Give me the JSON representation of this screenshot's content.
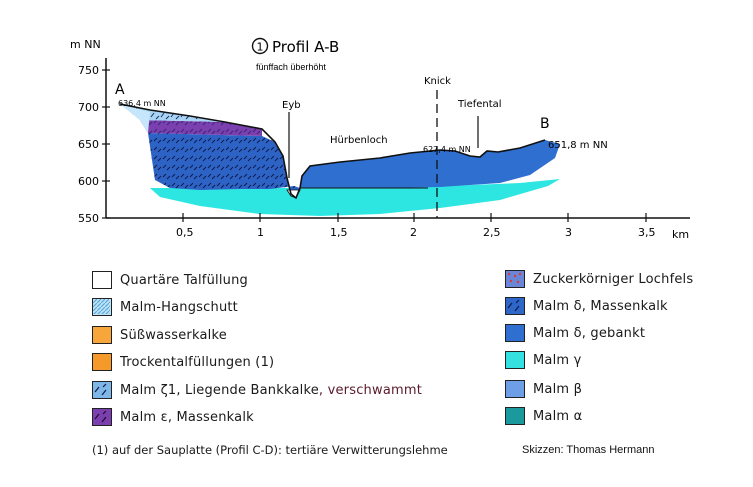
{
  "title": "Profil A-B",
  "title_number": "1",
  "subtitle": "fünffach überhöht",
  "y_axis_unit": "m NN",
  "x_axis_unit": "km",
  "y_ticks": [
    "750",
    "700",
    "650",
    "600",
    "550"
  ],
  "x_ticks": [
    "0,5",
    "1",
    "1,5",
    "2",
    "2,5",
    "3",
    "3,5"
  ],
  "points": {
    "a_label": "A",
    "a_elevation": "636,4 m NN",
    "b_label": "B",
    "b_elevation": "651,8 m NN",
    "knick_elevation": "627,4 m NN"
  },
  "place_names": {
    "eyb": "Eyb",
    "knick": "Knick",
    "tiefental": "Tiefental",
    "huerbenloch": "Hürbenloch"
  },
  "legend_left": [
    {
      "label": "Quartäre Talfüllung",
      "color": "#ffffff",
      "pattern": "none"
    },
    {
      "label": "Malm-Hangschutt",
      "color": "#bfe3f7",
      "pattern": "hatch"
    },
    {
      "label": "Süßwasserkalke",
      "color": "#f6a63a",
      "pattern": "none"
    },
    {
      "label": "Trockentalfüllungen (1)",
      "color": "#f39a2a",
      "pattern": "none"
    },
    {
      "label": "Malm ζ1, Liegende Bankkalke",
      "extra": ", verschwammt",
      "color": "#7fb7e8",
      "pattern": "ticks"
    },
    {
      "label": "Malm ε, Massenkalk",
      "color": "#7b3fb0",
      "pattern": "ticks"
    }
  ],
  "legend_right": [
    {
      "label": "Zuckerkörniger Lochfels",
      "color": "#6a86d6",
      "pattern": "dots"
    },
    {
      "label": "Malm δ, Massenkalk",
      "color": "#2e66c9",
      "pattern": "ticks"
    },
    {
      "label": "Malm δ, gebankt",
      "color": "#2f6fd0",
      "pattern": "none"
    },
    {
      "label": "Malm γ",
      "color": "#35e0e0",
      "pattern": "none"
    },
    {
      "label": "Malm β",
      "color": "#6e9fe6",
      "pattern": "none"
    },
    {
      "label": "Malm α",
      "color": "#1b9a9e",
      "pattern": "none"
    }
  ],
  "footnote": "(1) auf der Sauplatte (Profil C-D): tertiäre Verwitterungslehme",
  "credit": "Skizzen: Thomas Hermann",
  "colors": {
    "malm_gamma": "#2de6e2",
    "malm_delta_gebankt": "#2f6fd0",
    "malm_delta_massenkalk": "#2e63c6",
    "malm_epsilon": "#7b3fb0",
    "malm_zeta": "#a8d3f2",
    "hangschutt": "#c6e6fb"
  }
}
